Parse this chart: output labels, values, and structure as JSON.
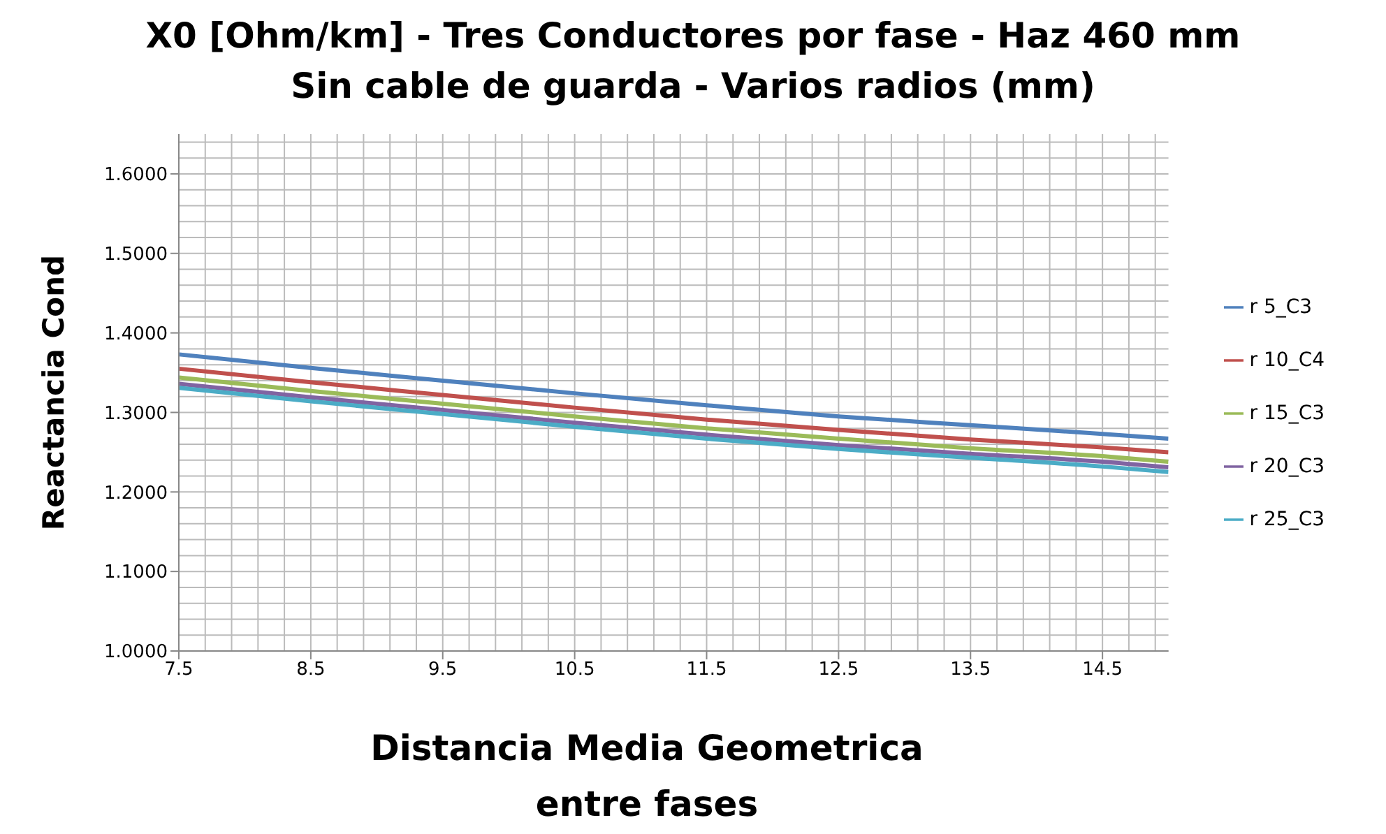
{
  "chart_data": {
    "type": "line",
    "title": "X0 [Ohm/km]  - Tres Conductores por fase - Haz 460 mm\nSin cable de guarda - Varios radios (mm)",
    "xlabel": "Distancia Media Geometrica entre fases",
    "ylabel": "Reactancia Cond",
    "x": [
      7.5,
      8.5,
      9.5,
      10.5,
      11.5,
      12.5,
      13.5,
      14.5,
      15
    ],
    "series": [
      {
        "name": "r 5_C3",
        "color": "#4f81bd",
        "values": [
          1.373,
          1.356,
          1.34,
          1.324,
          1.309,
          1.295,
          1.284,
          1.273,
          1.267
        ]
      },
      {
        "name": "r 10_C4",
        "color": "#c0504d",
        "values": [
          1.355,
          1.338,
          1.322,
          1.306,
          1.291,
          1.278,
          1.266,
          1.256,
          1.25
        ]
      },
      {
        "name": "r 15_C3",
        "color": "#9bbb59",
        "values": [
          1.344,
          1.327,
          1.311,
          1.295,
          1.28,
          1.267,
          1.255,
          1.245,
          1.238
        ]
      },
      {
        "name": "r 20_C3",
        "color": "#8064a2",
        "values": [
          1.336,
          1.319,
          1.303,
          1.287,
          1.272,
          1.259,
          1.248,
          1.238,
          1.231
        ]
      },
      {
        "name": "r 25_C3",
        "color": "#4bacc6",
        "values": [
          1.331,
          1.314,
          1.298,
          1.282,
          1.267,
          1.254,
          1.243,
          1.232,
          1.225
        ]
      }
    ],
    "xlim": [
      7.5,
      15
    ],
    "xticks": [
      7.5,
      8.5,
      9.5,
      10.5,
      11.5,
      12.5,
      13.5,
      14.5
    ],
    "ylim": [
      1.0,
      1.65
    ],
    "yticks": [
      {
        "value": 1.0,
        "label": "1.0000"
      },
      {
        "value": 1.1,
        "label": "1.1000"
      },
      {
        "value": 1.2,
        "label": "1.2000"
      },
      {
        "value": 1.3,
        "label": "1.3000"
      },
      {
        "value": 1.4,
        "label": "1.4000"
      },
      {
        "value": 1.5,
        "label": "1.5000"
      },
      {
        "value": 1.6,
        "label": "1.6000"
      }
    ],
    "grid": true,
    "legend": "right",
    "marker": "none",
    "line_style": "solid"
  }
}
